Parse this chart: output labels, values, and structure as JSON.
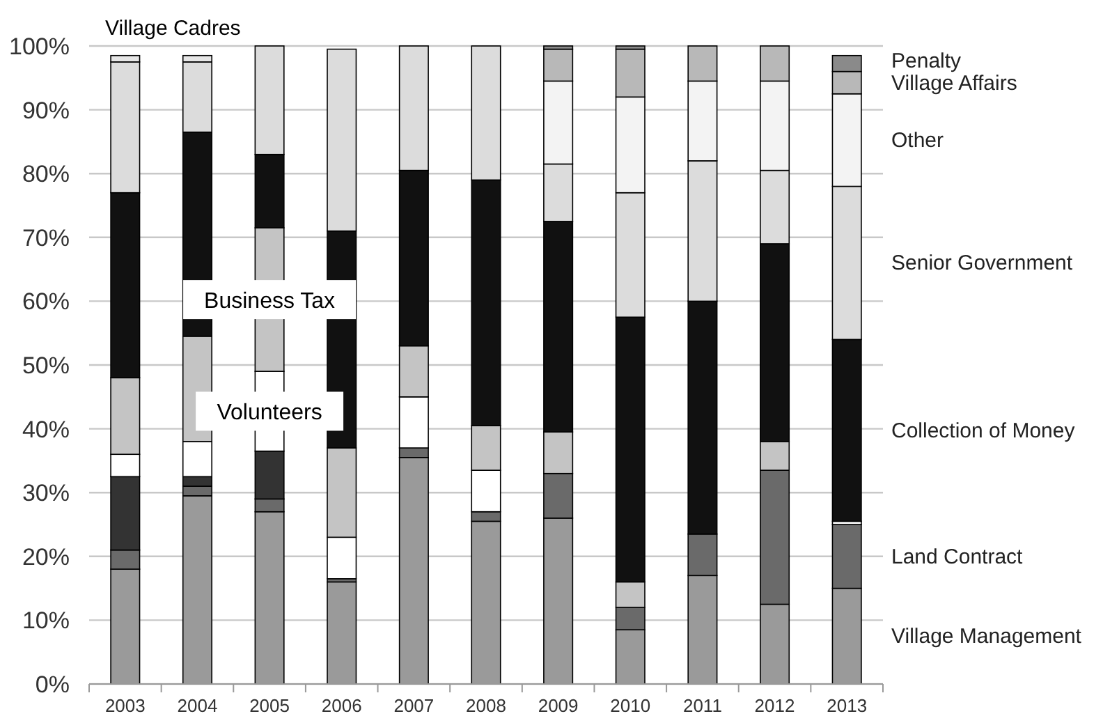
{
  "chart_data": {
    "type": "bar",
    "stacked": true,
    "categories": [
      "2003",
      "2004",
      "2005",
      "2006",
      "2007",
      "2008",
      "2009",
      "2010",
      "2011",
      "2012",
      "2013"
    ],
    "ylim": [
      0,
      100
    ],
    "yticks": [
      {
        "value": 0,
        "label": "0%"
      },
      {
        "value": 10,
        "label": "10%"
      },
      {
        "value": 20,
        "label": "20%"
      },
      {
        "value": 30,
        "label": "30%"
      },
      {
        "value": 40,
        "label": "40%"
      },
      {
        "value": 50,
        "label": "50%"
      },
      {
        "value": 60,
        "label": "60%"
      },
      {
        "value": 70,
        "label": "70%"
      },
      {
        "value": 80,
        "label": "80%"
      },
      {
        "value": 90,
        "label": "90%"
      },
      {
        "value": 100,
        "label": "100%"
      }
    ],
    "grid": "y",
    "legend": false,
    "series": [
      {
        "name": "Village Management",
        "color": "#9a9a9a",
        "values": [
          18,
          29.5,
          27,
          16,
          35.5,
          25.5,
          26,
          8.5,
          17,
          12.5,
          15
        ]
      },
      {
        "name": "Land Contract",
        "color": "#6a6a6a",
        "values": [
          3,
          1.5,
          2,
          0.5,
          1.5,
          1.5,
          7,
          3.5,
          6.5,
          21,
          10
        ]
      },
      {
        "color": "#333333",
        "values": [
          11.5,
          1.5,
          7.5,
          0,
          0,
          0,
          0,
          0,
          0,
          0,
          0
        ]
      },
      {
        "name": "Volunteers",
        "color": "#ffffff",
        "values": [
          3.5,
          5.5,
          12.5,
          6.5,
          8,
          6.5,
          0,
          0,
          0,
          0,
          0.5
        ]
      },
      {
        "name": "Business Tax",
        "color": "#c4c4c4",
        "values": [
          12,
          16.5,
          22.5,
          14,
          8,
          7,
          6.5,
          4,
          0,
          4.5,
          0
        ]
      },
      {
        "name": "Collection of Money",
        "color": "#111111",
        "values": [
          29,
          32,
          11.5,
          34,
          27.5,
          38.5,
          33,
          41.5,
          36.5,
          31,
          28.5
        ]
      },
      {
        "name": "Senior Government",
        "color": "#dcdcdc",
        "values": [
          20.5,
          11,
          17,
          28.5,
          19.5,
          21,
          9,
          19.5,
          22,
          11.5,
          24
        ]
      },
      {
        "name": "Other",
        "color": "#f3f3f3",
        "values": [
          0,
          0,
          0,
          0,
          0,
          0,
          13,
          15,
          12.5,
          14,
          14.5
        ]
      },
      {
        "name": "Village Affairs",
        "color": "#b8b8b8",
        "values": [
          0,
          0,
          0,
          0,
          0,
          0,
          5,
          7.5,
          5.5,
          5.5,
          3.5
        ]
      },
      {
        "name": "Penalty",
        "color": "#8a8a8a",
        "values": [
          0,
          0,
          0,
          0,
          0,
          0,
          0.5,
          0.5,
          0,
          0,
          2.5
        ]
      },
      {
        "name": "Village Cadres",
        "color": "#e6e6e6",
        "values": [
          1,
          1,
          0,
          0,
          0,
          0,
          0,
          0,
          0,
          0,
          0
        ]
      }
    ]
  }
}
